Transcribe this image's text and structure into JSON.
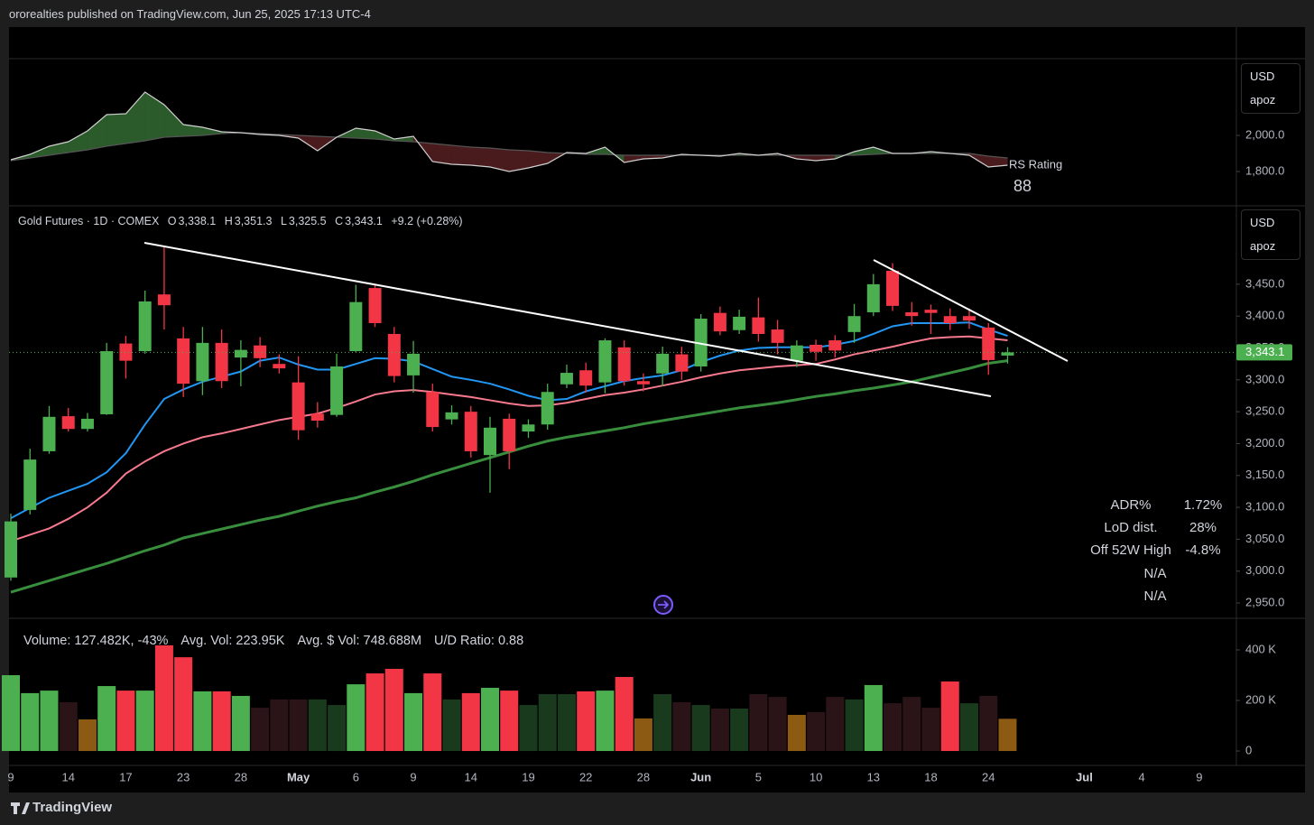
{
  "header": "ororealties published on TradingView.com, Jun 25, 2025 17:13 UTC-4",
  "scale_box": {
    "currency": "USD",
    "label": "apoz"
  },
  "legend": {
    "symbol": "Gold Futures · 1D · COMEX",
    "items": [
      {
        "key": "O",
        "value": "3,338.1"
      },
      {
        "key": "H",
        "value": "3,351.3"
      },
      {
        "key": "L",
        "value": "3,325.5"
      },
      {
        "key": "C",
        "value": "3,343.1"
      }
    ],
    "change": "+9.2 (+0.28%)"
  },
  "stats": [
    {
      "label": "ADR%",
      "value": "1.72%"
    },
    {
      "label": "LoD dist.",
      "value": "28%"
    },
    {
      "label": "Off 52W High",
      "value": "-4.8%"
    },
    {
      "value": "N/A"
    },
    {
      "value": "N/A"
    }
  ],
  "volume_info": [
    "Volume: 127.482K, -43%",
    "Avg. Vol: 223.95K",
    "Avg. $ Vol: 748.688M",
    "U/D Ratio: 0.88"
  ],
  "footer": "TradingView",
  "chart_data": [
    {
      "type": "line",
      "label": "RS Rating",
      "rating": "88",
      "ylim": [
        1610,
        2425
      ],
      "yticks": [
        {
          "value": 1800,
          "label": "1,800.0"
        },
        {
          "value": 2000,
          "label": "2,000.0"
        }
      ],
      "fill_colors": [
        "#2b5a2b",
        "#4a1b1d"
      ],
      "series": [
        {
          "color": "#d0d0d0",
          "values": [
            1865,
            1895,
            1940,
            1965,
            2025,
            2115,
            2120,
            2240,
            2170,
            2060,
            2045,
            2020,
            2015,
            2005,
            2000,
            1985,
            1915,
            1990,
            2040,
            2025,
            1980,
            1995,
            1855,
            1840,
            1835,
            1825,
            1800,
            1820,
            1845,
            1905,
            1900,
            1935,
            1850,
            1870,
            1875,
            1895,
            1890,
            1885,
            1900,
            1890,
            1900,
            1870,
            1860,
            1870,
            1910,
            1935,
            1900,
            1900,
            1910,
            1900,
            1890,
            1825,
            1835
          ]
        },
        {
          "color": "#555555",
          "values": [
            1860,
            1875,
            1890,
            1905,
            1920,
            1940,
            1955,
            1970,
            1990,
            1995,
            2000,
            2010,
            2015,
            2010,
            2005,
            2000,
            1995,
            1990,
            1985,
            1980,
            1970,
            1965,
            1955,
            1945,
            1935,
            1930,
            1920,
            1915,
            1905,
            1900,
            1895,
            1895,
            1890,
            1890,
            1890,
            1890,
            1890,
            1890,
            1890,
            1890,
            1890,
            1890,
            1890,
            1890,
            1890,
            1895,
            1900,
            1900,
            1900,
            1900,
            1900,
            1885,
            1875
          ]
        }
      ]
    },
    {
      "type": "candlestick",
      "ylim": [
        2926,
        3573
      ],
      "yticks": [
        {
          "value": 2950,
          "label": "2,950.0"
        },
        {
          "value": 3000,
          "label": "3,000.0"
        },
        {
          "value": 3050,
          "label": "3,050.0"
        },
        {
          "value": 3100,
          "label": "3,100.0"
        },
        {
          "value": 3150,
          "label": "3,150.0"
        },
        {
          "value": 3200,
          "label": "3,200.0"
        },
        {
          "value": 3250,
          "label": "3,250.0"
        },
        {
          "value": 3300,
          "label": "3,300.0"
        },
        {
          "value": 3350,
          "label": "3,350.0"
        },
        {
          "value": 3400,
          "label": "3,400.0"
        },
        {
          "value": 3450,
          "label": "3,450.0"
        }
      ],
      "up_color": "#4caf50",
      "down_color": "#f23645",
      "last_price_label": "3,343.1",
      "open": [
        2990,
        3096,
        3188,
        3243,
        3223,
        3246,
        3357,
        3345,
        3434,
        3365,
        3298,
        3358,
        3335,
        3354,
        3325,
        3296,
        3247,
        3245,
        3345,
        3444,
        3372,
        3307,
        3281,
        3238,
        3250,
        3182,
        3239,
        3219,
        3230,
        3293,
        3315,
        3296,
        3351,
        3298,
        3310,
        3340,
        3321,
        3405,
        3378,
        3398,
        3379,
        3330,
        3355,
        3362,
        3375,
        3406,
        3471,
        3406,
        3410,
        3400,
        3400,
        3382,
        3338.1
      ],
      "high": [
        3090,
        3192,
        3259,
        3256,
        3248,
        3358,
        3369,
        3440,
        3509,
        3383,
        3383,
        3379,
        3362,
        3367,
        3340,
        3337,
        3265,
        3341,
        3449,
        3450,
        3383,
        3361,
        3294,
        3260,
        3259,
        3242,
        3247,
        3238,
        3294,
        3324,
        3327,
        3365,
        3362,
        3310,
        3352,
        3352,
        3403,
        3415,
        3410,
        3429,
        3394,
        3362,
        3363,
        3370,
        3419,
        3466,
        3483,
        3422,
        3418,
        3412,
        3412,
        3389,
        3351.3
      ],
      "low": [
        2985,
        3089,
        3184,
        3219,
        3219,
        3245,
        3302,
        3341,
        3379,
        3273,
        3276,
        3287,
        3290,
        3320,
        3310,
        3206,
        3225,
        3242,
        3344,
        3383,
        3296,
        3280,
        3219,
        3230,
        3178,
        3123,
        3160,
        3209,
        3222,
        3287,
        3280,
        3279,
        3291,
        3282,
        3290,
        3300,
        3313,
        3370,
        3372,
        3360,
        3340,
        3320,
        3330,
        3335,
        3358,
        3400,
        3408,
        3385,
        3372,
        3378,
        3380,
        3308,
        3325.5
      ],
      "close": [
        3078,
        3175,
        3242,
        3223,
        3239,
        3345,
        3330,
        3423,
        3417,
        3294,
        3358,
        3298,
        3347,
        3334,
        3318,
        3221,
        3236,
        3321,
        3422,
        3389,
        3306,
        3341,
        3226,
        3249,
        3188,
        3225,
        3188,
        3230,
        3281,
        3311,
        3291,
        3362,
        3298,
        3293,
        3341,
        3313,
        3396,
        3376,
        3399,
        3372,
        3358,
        3354,
        3344,
        3346,
        3400,
        3450,
        3416,
        3400,
        3405,
        3389,
        3393,
        3331,
        3343.1
      ],
      "series": [
        {
          "color": "#388e3c",
          "width": 3,
          "values": [
            2967,
            2976,
            2985,
            2994,
            3003,
            3012,
            3022,
            3032,
            3041,
            3052,
            3059,
            3066,
            3073,
            3080,
            3086,
            3094,
            3102,
            3109,
            3115,
            3124,
            3132,
            3141,
            3151,
            3160,
            3169,
            3178,
            3187,
            3196,
            3204,
            3210,
            3215,
            3220,
            3225,
            3231,
            3236,
            3241,
            3246,
            3251,
            3256,
            3260,
            3264,
            3269,
            3274,
            3278,
            3283,
            3287,
            3292,
            3297,
            3304,
            3311,
            3318,
            3326,
            3330
          ]
        },
        {
          "color": "#f7798e",
          "width": 2,
          "values": [
            3047,
            3057,
            3067,
            3082,
            3100,
            3123,
            3153,
            3172,
            3188,
            3200,
            3210,
            3216,
            3223,
            3230,
            3237,
            3242,
            3247,
            3256,
            3266,
            3277,
            3282,
            3284,
            3281,
            3277,
            3273,
            3268,
            3263,
            3259,
            3260,
            3264,
            3270,
            3276,
            3280,
            3285,
            3291,
            3297,
            3304,
            3310,
            3315,
            3318,
            3321,
            3323,
            3325,
            3332,
            3340,
            3346,
            3352,
            3359,
            3365,
            3367,
            3368,
            3365,
            3362
          ]
        },
        {
          "color": "#2196f3",
          "width": 2,
          "values": [
            3083,
            3099,
            3115,
            3126,
            3137,
            3155,
            3185,
            3230,
            3270,
            3285,
            3297,
            3305,
            3313,
            3330,
            3335,
            3324,
            3316,
            3316,
            3325,
            3334,
            3333,
            3329,
            3317,
            3305,
            3300,
            3294,
            3285,
            3275,
            3268,
            3270,
            3282,
            3290,
            3298,
            3303,
            3307,
            3315,
            3328,
            3338,
            3346,
            3350,
            3351,
            3351,
            3351,
            3355,
            3361,
            3372,
            3384,
            3389,
            3389,
            3389,
            3390,
            3379,
            3369
          ]
        }
      ]
    },
    {
      "type": "bar",
      "ylim": [
        -57000,
        525000
      ],
      "yticks": [
        0,
        {
          "value": 200000,
          "label": "200 K"
        },
        {
          "value": 400000,
          "label": "400 K"
        }
      ],
      "categories": [
        "9",
        null,
        null,
        "14",
        null,
        null,
        "17",
        null,
        null,
        "23",
        null,
        null,
        "28",
        null,
        null,
        "May",
        null,
        null,
        "6",
        null,
        null,
        "9",
        null,
        null,
        "14",
        null,
        null,
        "19",
        null,
        null,
        "22",
        null,
        null,
        "28",
        null,
        null,
        "Jun",
        null,
        null,
        "5",
        null,
        null,
        "10",
        null,
        null,
        "13",
        null,
        null,
        "18",
        null,
        null,
        "24",
        null,
        null,
        null,
        null,
        "Jul",
        null,
        null,
        "4",
        null,
        null,
        "9"
      ],
      "values": [
        300000,
        229000,
        239000,
        193000,
        125000,
        257000,
        239000,
        239000,
        418000,
        371000,
        236000,
        236000,
        218000,
        171000,
        204000,
        204000,
        204000,
        182000,
        264000,
        307000,
        325000,
        229000,
        307000,
        204000,
        229000,
        250000,
        239000,
        182000,
        225000,
        225000,
        236000,
        239000,
        293000,
        129000,
        225000,
        193000,
        182000,
        168000,
        168000,
        225000,
        214000,
        143000,
        154000,
        214000,
        204000,
        261000,
        189000,
        214000,
        171000,
        275000,
        189000,
        218000,
        127482,
        null,
        null,
        null,
        null,
        null,
        null,
        null,
        null,
        null,
        null
      ],
      "colors": [
        "#4caf50",
        "#4caf50",
        "#4caf50",
        "#2b1418",
        "#8c5a12",
        "#4caf50",
        "#f23645",
        "#4caf50",
        "#f23645",
        "#f23645",
        "#4caf50",
        "#f23645",
        "#4caf50",
        "#2b1418",
        "#2b1418",
        "#2b1418",
        "#1a3a1e",
        "#1a3a1e",
        "#4caf50",
        "#f23645",
        "#f23645",
        "#4caf50",
        "#f23645",
        "#1a3a1e",
        "#f23645",
        "#4caf50",
        "#f23645",
        "#1a3a1e",
        "#1a3a1e",
        "#1a3a1e",
        "#f23645",
        "#4caf50",
        "#f23645",
        "#8c5a12",
        "#1a3a1e",
        "#2b1418",
        "#1a3a1e",
        "#2b1418",
        "#1a3a1e",
        "#2b1418",
        "#2b1418",
        "#8c5a12",
        "#2b1418",
        "#2b1418",
        "#1a3a1e",
        "#4caf50",
        "#2b1418",
        "#2b1418",
        "#2b1418",
        "#f23645",
        "#1a3a1e",
        "#2b1418",
        "#8c5a12",
        null,
        null,
        null,
        null,
        null,
        null,
        null,
        null,
        null,
        null
      ]
    }
  ]
}
